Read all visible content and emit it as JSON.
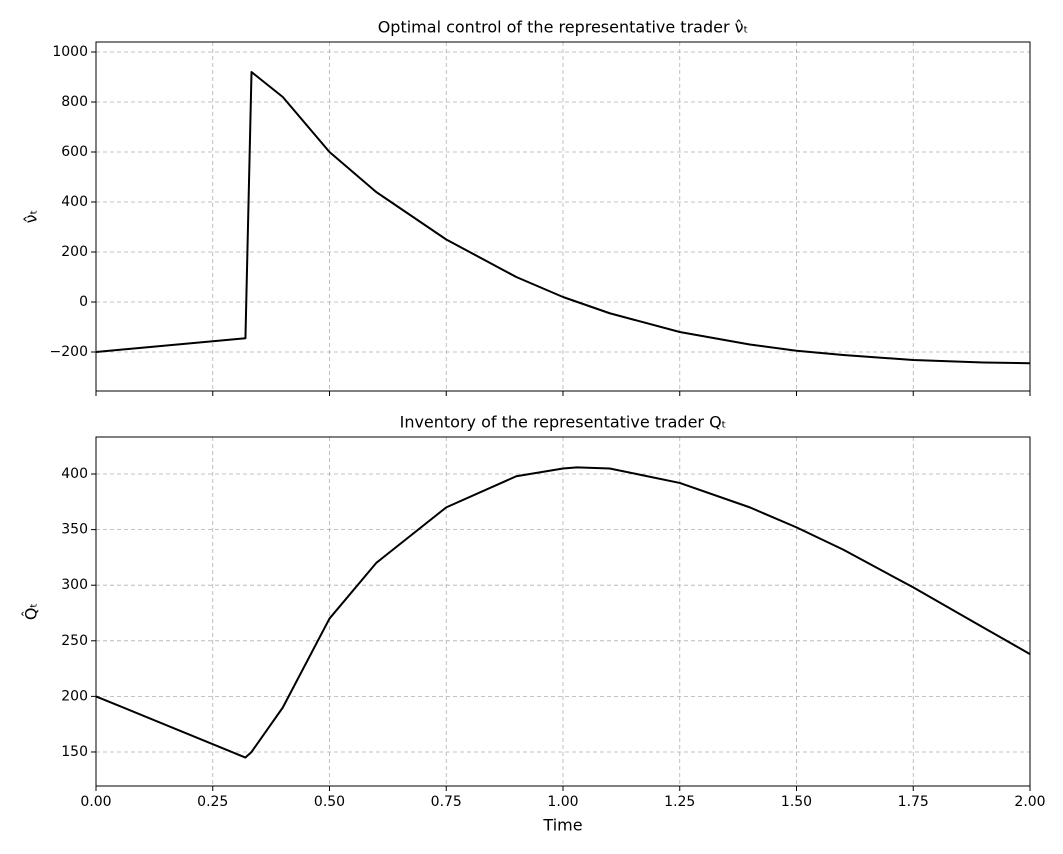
{
  "chart_data": [
    {
      "type": "line",
      "title": "Optimal control of the representative trader ν̂ₜ",
      "ylabel": "ν̂ₜ",
      "x": [
        0,
        0.32,
        0.333,
        0.4,
        0.5,
        0.6,
        0.75,
        0.9,
        1.0,
        1.1,
        1.25,
        1.4,
        1.5,
        1.6,
        1.75,
        1.9,
        2.0
      ],
      "series": [
        {
          "color": "#000000",
          "values": [
            -200,
            -145,
            920,
            820,
            600,
            440,
            250,
            100,
            20,
            -45,
            -120,
            -170,
            -195,
            -212,
            -232,
            -242,
            -245
          ]
        }
      ],
      "xlim": [
        0,
        2
      ],
      "xticks": [
        0,
        0.25,
        0.5,
        0.75,
        1,
        1.25,
        1.5,
        1.75,
        2
      ],
      "ylim": [
        -356,
        1040
      ],
      "yticks": [
        {
          "value": -200,
          "label": "−200"
        },
        0,
        200,
        400,
        600,
        800,
        1000
      ],
      "grid": true
    },
    {
      "type": "line",
      "title": "Inventory of the representative trader Qₜ",
      "ylabel": "Q̂ₜ",
      "xlabel": "Time",
      "x": [
        0,
        0.32,
        0.333,
        0.4,
        0.5,
        0.6,
        0.75,
        0.9,
        1.0,
        1.03,
        1.1,
        1.25,
        1.4,
        1.5,
        1.6,
        1.75,
        1.9,
        2.0
      ],
      "series": [
        {
          "color": "#000000",
          "values": [
            200,
            145,
            150,
            190,
            270,
            320,
            370,
            398,
            405,
            406,
            405,
            392,
            370,
            352,
            332,
            298,
            262,
            238
          ]
        }
      ],
      "xlim": [
        0,
        2
      ],
      "xticks": [
        {
          "value": 0,
          "label": "0.00"
        },
        {
          "value": 0.25,
          "label": "0.25"
        },
        {
          "value": 0.5,
          "label": "0.50"
        },
        {
          "value": 0.75,
          "label": "0.75"
        },
        {
          "value": 1,
          "label": "1.00"
        },
        {
          "value": 1.25,
          "label": "1.25"
        },
        {
          "value": 1.5,
          "label": "1.50"
        },
        {
          "value": 1.75,
          "label": "1.75"
        },
        {
          "value": 2,
          "label": "2.00"
        }
      ],
      "ylim": [
        119.4,
        433.3
      ],
      "yticks": [
        150,
        200,
        250,
        300,
        350,
        400
      ],
      "grid": true
    }
  ]
}
